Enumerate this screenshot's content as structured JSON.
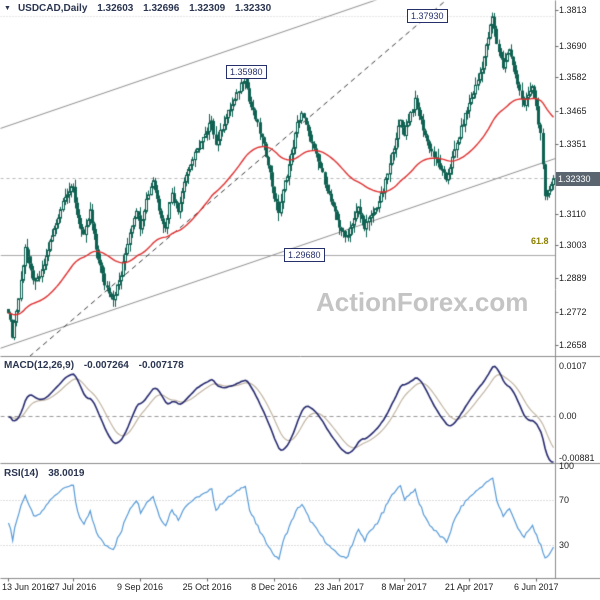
{
  "colors": {
    "background": "#ffffff",
    "candle": "#0f6152",
    "candle_up_fill": "#ffffff",
    "ma": "#e03030",
    "macd_line": "#262a6e",
    "macd_signal": "#c2b5a3",
    "rsi_line": "#589bd8",
    "grid": "#bbbbbb",
    "panel_border": "#8a8a8a",
    "trendline": "#909090",
    "dashed_trendline": "#3c3c3c",
    "annotation": "#26306b",
    "fib": "#8b8000",
    "price_tag_bg": "#5a6570",
    "price_tag_text": "#ffffff",
    "watermark": "#c4c4c4",
    "text": "#2a3550"
  },
  "main_panel": {
    "symbol": "USDCAD,Daily",
    "ohlc": {
      "open": "1.32603",
      "high": "1.32696",
      "low": "1.32309",
      "close": "1.32330"
    },
    "axis_ticks": [
      {
        "label": "1.3813",
        "value": 1.3813
      },
      {
        "label": "1.3690",
        "value": 1.369
      },
      {
        "label": "1.3582",
        "value": 1.3582
      },
      {
        "label": "1.3465",
        "value": 1.3465
      },
      {
        "label": "1.3351",
        "value": 1.3351
      },
      {
        "label": "1.3233",
        "value": 1.3233
      },
      {
        "label": "1.3110",
        "value": 1.311
      },
      {
        "label": "1.3003",
        "value": 1.3003
      },
      {
        "label": "1.2889",
        "value": 1.2889
      },
      {
        "label": "1.2772",
        "value": 1.2772
      },
      {
        "label": "1.2658",
        "value": 1.2658
      }
    ],
    "current_price": {
      "label": "1.32330",
      "value": 1.3233
    },
    "annotations": [
      {
        "name": "resistance-1",
        "label": "1.37930",
        "price": 1.3793
      },
      {
        "name": "resistance-2",
        "label": "1.35980",
        "price": 1.3598
      },
      {
        "name": "support-fib",
        "label": "1.29680",
        "price": 1.2968
      }
    ],
    "fib_label": "61.8",
    "watermark": "ActionForex.com"
  },
  "macd_panel": {
    "title": "MACD(12,26,9)",
    "value_main": "-0.007264",
    "value_signal": "-0.007178",
    "axis_ticks": [
      {
        "label": "0.0107",
        "value": 0.0107
      },
      {
        "label": "0.00",
        "value": 0
      },
      {
        "label": "-0.00881",
        "value": -0.00881
      }
    ]
  },
  "rsi_panel": {
    "title": "RSI(14)",
    "value": "38.0019",
    "axis_ticks": [
      {
        "label": "100",
        "value": 100
      },
      {
        "label": "70",
        "value": 70
      },
      {
        "label": "30",
        "value": 30
      }
    ],
    "guides": [
      70,
      30
    ]
  },
  "x_axis": {
    "dates": [
      {
        "label": "13 Jun 2016",
        "day": 0
      },
      {
        "label": "27 Jul 2016",
        "day": 31
      },
      {
        "label": "9 Sep 2016",
        "day": 63
      },
      {
        "label": "25 Oct 2016",
        "day": 95
      },
      {
        "label": "8 Dec 2016",
        "day": 127
      },
      {
        "label": "23 Jan 2017",
        "day": 158
      },
      {
        "label": "8 Mar 2017",
        "day": 189
      },
      {
        "label": "21 Apr 2017",
        "day": 220
      },
      {
        "label": "6 Jun 2017",
        "day": 252
      }
    ]
  },
  "chart_data": {
    "type": "candlestick",
    "title": "USDCAD Daily",
    "symbol": "USDCAD",
    "timeframe": "Daily",
    "x_range": {
      "start": "13 Jun 2016",
      "end": "16 Jun 2017",
      "trading_days": 261
    },
    "ylim": [
      1.2658,
      1.3813
    ],
    "last_ohlc": {
      "open": 1.32603,
      "high": 1.32696,
      "low": 1.32309,
      "close": 1.3233
    },
    "key_levels": {
      "resistance_high": 1.3793,
      "resistance_mid": 1.3598,
      "fib_618_support": 1.2968,
      "current": 1.3233
    },
    "close_path": [
      [
        0,
        1.278
      ],
      [
        2,
        1.2695
      ],
      [
        5,
        1.282
      ],
      [
        8,
        1.3
      ],
      [
        10,
        1.293
      ],
      [
        13,
        1.287
      ],
      [
        16,
        1.291
      ],
      [
        19,
        1.299
      ],
      [
        23,
        1.308
      ],
      [
        27,
        1.318
      ],
      [
        31,
        1.32
      ],
      [
        33,
        1.311
      ],
      [
        36,
        1.303
      ],
      [
        39,
        1.312
      ],
      [
        42,
        1.299
      ],
      [
        46,
        1.287
      ],
      [
        50,
        1.282
      ],
      [
        54,
        1.29
      ],
      [
        58,
        1.305
      ],
      [
        61,
        1.313
      ],
      [
        63,
        1.307
      ],
      [
        66,
        1.316
      ],
      [
        69,
        1.323
      ],
      [
        72,
        1.313
      ],
      [
        75,
        1.306
      ],
      [
        78,
        1.319
      ],
      [
        81,
        1.312
      ],
      [
        84,
        1.323
      ],
      [
        88,
        1.33
      ],
      [
        92,
        1.336
      ],
      [
        95,
        1.339
      ],
      [
        97,
        1.344
      ],
      [
        99,
        1.335
      ],
      [
        102,
        1.341
      ],
      [
        105,
        1.346
      ],
      [
        108,
        1.35
      ],
      [
        111,
        1.356
      ],
      [
        113,
        1.359
      ],
      [
        115,
        1.35
      ],
      [
        118,
        1.344
      ],
      [
        121,
        1.337
      ],
      [
        124,
        1.329
      ],
      [
        127,
        1.317
      ],
      [
        129,
        1.312
      ],
      [
        132,
        1.322
      ],
      [
        135,
        1.331
      ],
      [
        138,
        1.342
      ],
      [
        140,
        1.346
      ],
      [
        143,
        1.339
      ],
      [
        146,
        1.333
      ],
      [
        149,
        1.327
      ],
      [
        152,
        1.32
      ],
      [
        155,
        1.313
      ],
      [
        158,
        1.307
      ],
      [
        161,
        1.303
      ],
      [
        164,
        1.308
      ],
      [
        167,
        1.313
      ],
      [
        170,
        1.307
      ],
      [
        173,
        1.31
      ],
      [
        176,
        1.314
      ],
      [
        179,
        1.319
      ],
      [
        182,
        1.328
      ],
      [
        185,
        1.338
      ],
      [
        187,
        1.343
      ],
      [
        189,
        1.339
      ],
      [
        192,
        1.346
      ],
      [
        194,
        1.35
      ],
      [
        197,
        1.343
      ],
      [
        200,
        1.336
      ],
      [
        203,
        1.331
      ],
      [
        206,
        1.327
      ],
      [
        209,
        1.323
      ],
      [
        212,
        1.33
      ],
      [
        215,
        1.338
      ],
      [
        218,
        1.345
      ],
      [
        220,
        1.349
      ],
      [
        223,
        1.355
      ],
      [
        226,
        1.362
      ],
      [
        229,
        1.372
      ],
      [
        231,
        1.379
      ],
      [
        233,
        1.37
      ],
      [
        236,
        1.362
      ],
      [
        239,
        1.368
      ],
      [
        241,
        1.362
      ],
      [
        244,
        1.354
      ],
      [
        246,
        1.348
      ],
      [
        248,
        1.352
      ],
      [
        250,
        1.3545
      ],
      [
        252,
        1.348
      ],
      [
        254,
        1.338
      ],
      [
        256,
        1.3165
      ],
      [
        258,
        1.32
      ],
      [
        260,
        1.3233
      ]
    ],
    "overlays": {
      "ma_red": {
        "type": "ema",
        "period": 55
      },
      "trendlines": [
        {
          "name": "channel-upper",
          "style": "solid",
          "d1": -4,
          "p1": 1.3406,
          "d2": 261,
          "p2": 1.4061
        },
        {
          "name": "channel-lower",
          "style": "solid",
          "d1": -4,
          "p1": 1.2648,
          "d2": 261,
          "p2": 1.3303
        },
        {
          "name": "rising-trendline",
          "style": "dashed",
          "d1": 10,
          "p1": 1.262,
          "d2": 209,
          "p2": 1.385
        }
      ],
      "hlines": [
        {
          "name": "resistance-dotted-line",
          "price": 1.3793,
          "style": "dotted",
          "color": "#c8c8c8"
        },
        {
          "name": "current-price-line",
          "price": 1.3233,
          "style": "dashed",
          "color": "#b8b8b8"
        },
        {
          "name": "fib-618-line",
          "price": 1.2968,
          "style": "solid",
          "color": "#a8a8a8"
        }
      ]
    },
    "indicators": {
      "macd": {
        "fast": 12,
        "slow": 26,
        "signal": 9,
        "last_main": -0.007264,
        "last_signal": -0.007178,
        "axis_max": 0.0107,
        "axis_min": -0.00881
      },
      "rsi": {
        "period": 14,
        "last": 38.0019,
        "guides": [
          70,
          30
        ],
        "axis": [
          0,
          100
        ]
      }
    }
  }
}
